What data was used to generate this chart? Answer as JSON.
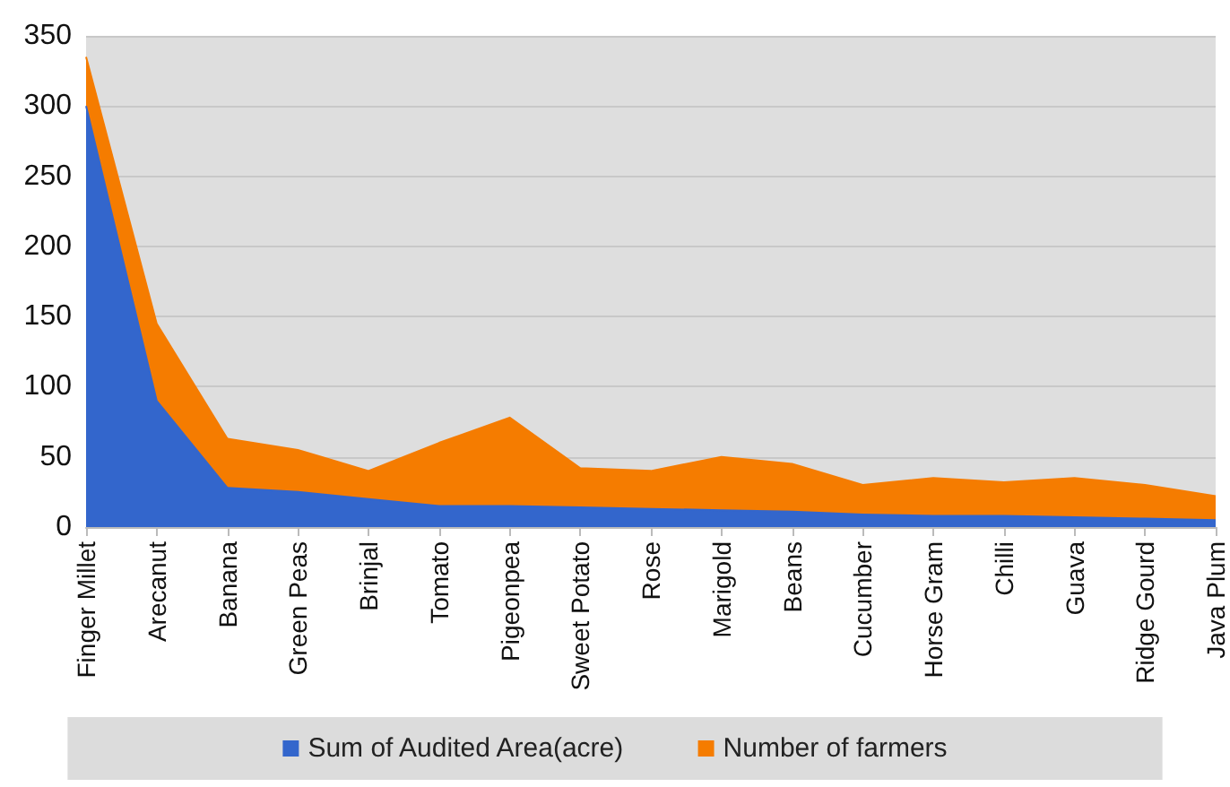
{
  "chart_data": {
    "type": "area",
    "stacked": true,
    "categories": [
      "Finger Millet",
      "Arecanut",
      "Banana",
      "Green Peas",
      "Brinjal",
      "Tomato",
      "Pigeonpea",
      "Sweet Potato",
      "Rose",
      "Marigold",
      "Beans",
      "Cucumber",
      "Horse Gram",
      "Chilli",
      "Guava",
      "Ridge Gourd",
      "Java Plum"
    ],
    "series": [
      {
        "name": "Sum of Audited Area(acre)",
        "color": "#3366cc",
        "values": [
          300,
          90,
          28,
          25,
          20,
          15,
          15,
          14,
          13,
          12,
          11,
          9,
          8,
          8,
          7,
          6,
          5
        ]
      },
      {
        "name": "Number of farmers",
        "color": "#f57c00",
        "values": [
          35,
          55,
          35,
          30,
          20,
          45,
          63,
          28,
          27,
          38,
          34,
          21,
          27,
          24,
          28,
          24,
          17
        ]
      }
    ],
    "ylim": [
      0,
      350
    ],
    "yticks": [
      0,
      50,
      100,
      150,
      200,
      250,
      300,
      350
    ],
    "grid": "y",
    "legend": "bottom"
  }
}
